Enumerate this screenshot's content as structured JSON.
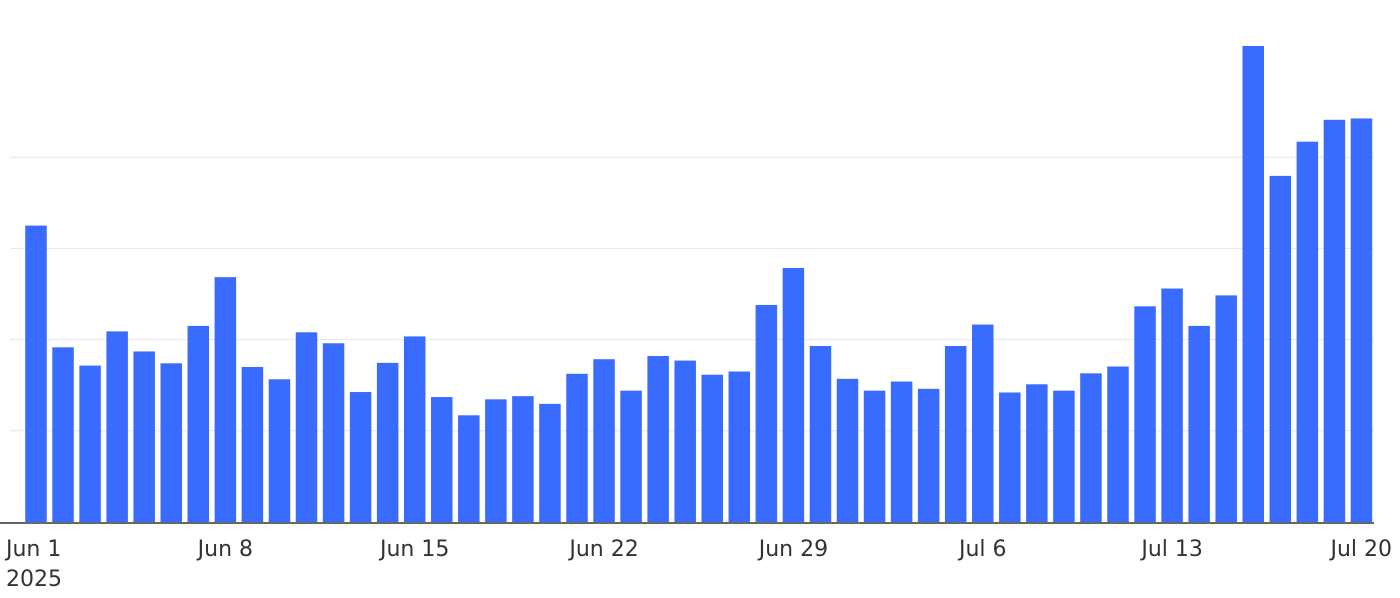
{
  "chart_data": {
    "type": "bar",
    "title": "",
    "xlabel": "",
    "ylabel": "",
    "bar_color": "#3a6bff",
    "grid": true,
    "ylim": [
      0,
      100
    ],
    "gridlines": [
      20,
      40,
      60,
      80
    ],
    "x": [
      "2025-06-01",
      "2025-06-02",
      "2025-06-03",
      "2025-06-04",
      "2025-06-05",
      "2025-06-06",
      "2025-06-07",
      "2025-06-08",
      "2025-06-09",
      "2025-06-10",
      "2025-06-11",
      "2025-06-12",
      "2025-06-13",
      "2025-06-14",
      "2025-06-15",
      "2025-06-16",
      "2025-06-17",
      "2025-06-18",
      "2025-06-19",
      "2025-06-20",
      "2025-06-21",
      "2025-06-22",
      "2025-06-23",
      "2025-06-24",
      "2025-06-25",
      "2025-06-26",
      "2025-06-27",
      "2025-06-28",
      "2025-06-29",
      "2025-06-30",
      "2025-07-01",
      "2025-07-02",
      "2025-07-03",
      "2025-07-04",
      "2025-07-05",
      "2025-07-06",
      "2025-07-07",
      "2025-07-08",
      "2025-07-09",
      "2025-07-10",
      "2025-07-11",
      "2025-07-12",
      "2025-07-13",
      "2025-07-14",
      "2025-07-15",
      "2025-07-16",
      "2025-07-17",
      "2025-07-18",
      "2025-07-19",
      "2025-07-20"
    ],
    "values": [
      65,
      38.3,
      34.3,
      41.8,
      37.4,
      34.8,
      43.0,
      53.7,
      34.0,
      31.3,
      41.6,
      39.2,
      28.5,
      34.9,
      40.7,
      27.4,
      23.4,
      26.9,
      27.6,
      25.9,
      32.5,
      35.7,
      28.8,
      36.4,
      35.4,
      32.3,
      33.0,
      47.6,
      55.7,
      38.6,
      31.4,
      28.8,
      30.8,
      29.2,
      38.6,
      43.3,
      28.4,
      30.2,
      28.8,
      32.6,
      34.1,
      47.3,
      51.2,
      43.0,
      49.7,
      104.9,
      75.9,
      83.4,
      88.2,
      88.5
    ],
    "x_ticks": [
      {
        "index": 0,
        "label": "Jun 1",
        "sublabel": "2025"
      },
      {
        "index": 7,
        "label": "Jun 8"
      },
      {
        "index": 14,
        "label": "Jun 15"
      },
      {
        "index": 21,
        "label": "Jun 22"
      },
      {
        "index": 28,
        "label": "Jun 29"
      },
      {
        "index": 35,
        "label": "Jul 6"
      },
      {
        "index": 42,
        "label": "Jul 13"
      },
      {
        "index": 49,
        "label": "Jul 20"
      }
    ]
  }
}
